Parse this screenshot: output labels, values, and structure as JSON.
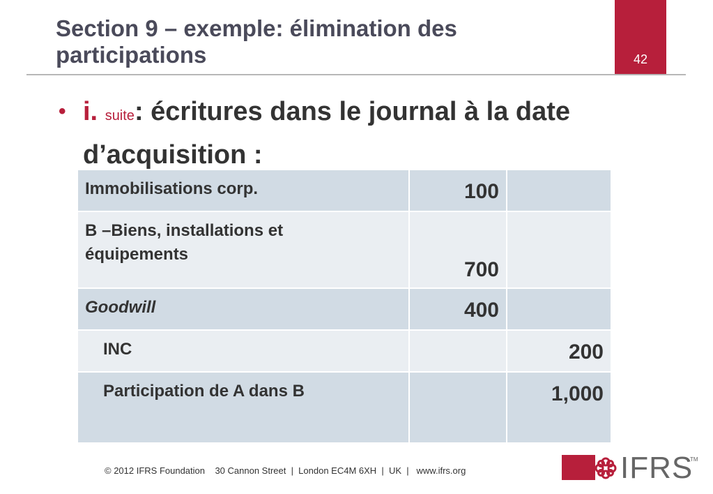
{
  "slide": {
    "title": "Section 9 – exemple: élimination des participations",
    "page_number": "42"
  },
  "bullet": {
    "marker": "•",
    "numeral": "i.",
    "small": "suite",
    "text": ": écritures dans le journal à la date d’acquisition :"
  },
  "journal": {
    "rows": [
      {
        "label": "Immobilisations corp.",
        "debit": "100",
        "credit": ""
      },
      {
        "label": "B –Biens, installations et équipements",
        "debit": "700",
        "credit": ""
      },
      {
        "label": "Goodwill",
        "debit": "400",
        "credit": ""
      },
      {
        "label": "INC",
        "debit": "",
        "credit": "200"
      },
      {
        "label": "Participation de A dans B",
        "debit": "",
        "credit": "1,000"
      }
    ]
  },
  "footer": {
    "copyright": "© 2012 IFRS Foundation    30 Cannon Street  |  London EC4M 6XH  |  UK  |   www.ifrs.org"
  },
  "logo": {
    "text": "IFRS",
    "tm": "TM",
    "color": "#b71f3b"
  },
  "colors": {
    "accent": "#b71f3b",
    "row_band": "#d1dbe4",
    "row_plain": "#eaeef2"
  }
}
